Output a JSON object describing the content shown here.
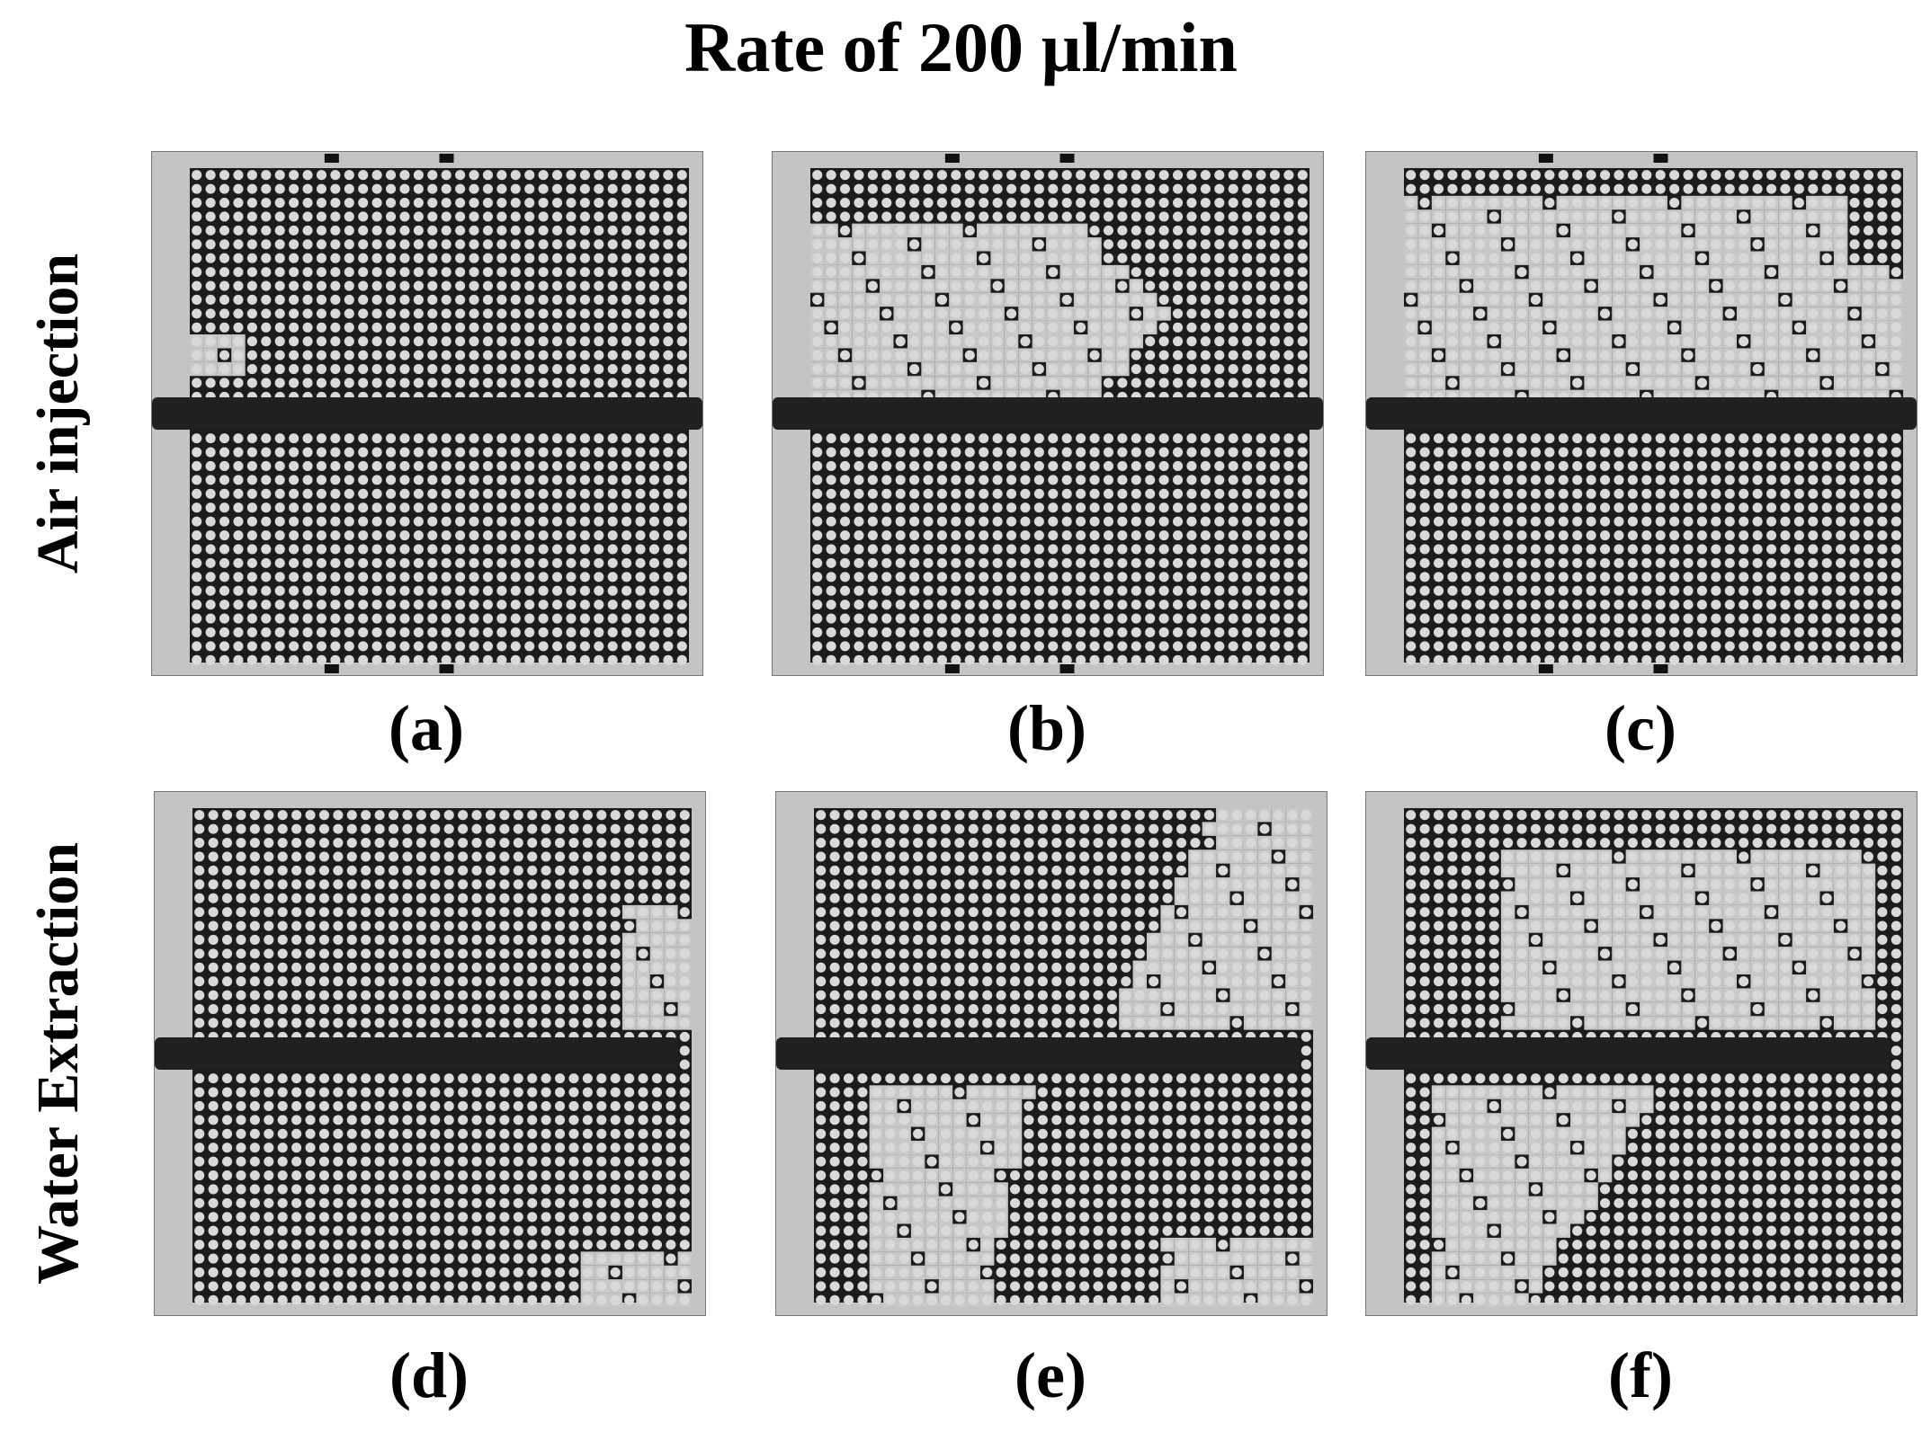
{
  "figure": {
    "title": "Rate of 200 µl/min",
    "rows": [
      {
        "label": "Air injection"
      },
      {
        "label": "Water Extraction"
      }
    ],
    "panels": [
      {
        "label": "(a)",
        "row": 0,
        "col": 0,
        "stage": "air-early"
      },
      {
        "label": "(b)",
        "row": 0,
        "col": 1,
        "stage": "air-mid"
      },
      {
        "label": "(c)",
        "row": 0,
        "col": 2,
        "stage": "air-late"
      },
      {
        "label": "(d)",
        "row": 1,
        "col": 0,
        "stage": "water-early"
      },
      {
        "label": "(e)",
        "row": 1,
        "col": 1,
        "stage": "water-mid"
      },
      {
        "label": "(f)",
        "row": 1,
        "col": 2,
        "stage": "water-late"
      }
    ],
    "colors": {
      "background": "#ffffff",
      "matrix": "#1c1c1c",
      "post": "#d9d9d9",
      "invaded": "#c8c8c8",
      "channel": "#202020"
    }
  }
}
